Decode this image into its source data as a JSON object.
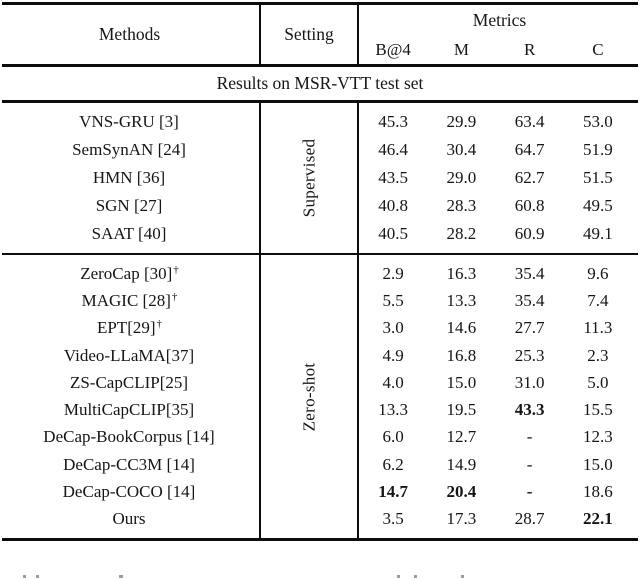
{
  "table": {
    "header": {
      "methods_label": "Methods",
      "setting_label": "Setting",
      "metrics_label": "Metrics",
      "metric_cols": [
        "B@4",
        "M",
        "R",
        "C"
      ]
    },
    "group_title": "Results on MSR-VTT test set",
    "sections": [
      {
        "setting_label": "Supervised",
        "rows": [
          {
            "method": "VNS-GRU [3]",
            "sup": "",
            "values": [
              "45.3",
              "29.9",
              "63.4",
              "53.0"
            ]
          },
          {
            "method": "SemSynAN [24]",
            "sup": "",
            "values": [
              "46.4",
              "30.4",
              "64.7",
              "51.9"
            ]
          },
          {
            "method": "HMN [36]",
            "sup": "",
            "values": [
              "43.5",
              "29.0",
              "62.7",
              "51.5"
            ]
          },
          {
            "method": "SGN [27]",
            "sup": "",
            "values": [
              "40.8",
              "28.3",
              "60.8",
              "49.5"
            ]
          },
          {
            "method": "SAAT [40]",
            "sup": "",
            "values": [
              "40.5",
              "28.2",
              "60.9",
              "49.1"
            ]
          }
        ]
      },
      {
        "setting_label": "Zero-shot",
        "rows": [
          {
            "method": "ZeroCap [30]",
            "sup": "†",
            "values": [
              "2.9",
              "16.3",
              "35.4",
              "9.6"
            ]
          },
          {
            "method": "MAGIC [28]",
            "sup": "†",
            "values": [
              "5.5",
              "13.3",
              "35.4",
              "7.4"
            ]
          },
          {
            "method": "EPT[29]",
            "sup": "†",
            "values": [
              "3.0",
              "14.6",
              "27.7",
              "11.3"
            ]
          },
          {
            "method": "Video-LLaMA[37]",
            "sup": "",
            "values": [
              "4.9",
              "16.8",
              "25.3",
              "2.3"
            ]
          },
          {
            "method": "ZS-CapCLIP[25]",
            "sup": "",
            "values": [
              "4.0",
              "15.0",
              "31.0",
              "5.0"
            ]
          },
          {
            "method": "MultiCapCLIP[35]",
            "sup": "",
            "values": [
              "13.3",
              "19.5",
              "43.3",
              "15.5"
            ]
          },
          {
            "method": "DeCap-BookCorpus [14]",
            "sup": "",
            "values": [
              "6.0",
              "12.7",
              "-",
              "12.3"
            ]
          },
          {
            "method": "DeCap-CC3M [14]",
            "sup": "",
            "values": [
              "6.2",
              "14.9",
              "-",
              "15.0"
            ]
          },
          {
            "method": "DeCap-COCO [14]",
            "sup": "",
            "values": [
              "14.7",
              "20.4",
              "-",
              "18.6"
            ]
          },
          {
            "method": "Ours",
            "sup": "",
            "values": [
              "3.5",
              "17.3",
              "28.7",
              "22.1"
            ]
          }
        ]
      }
    ]
  }
}
